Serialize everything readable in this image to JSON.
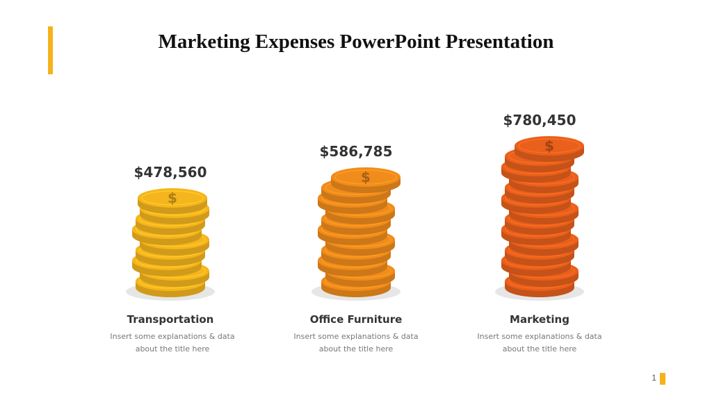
{
  "slide": {
    "title": "Marketing Expenses PowerPoint Presentation",
    "page_number": "1"
  },
  "chart_data": {
    "type": "bar",
    "title": "Marketing Expenses PowerPoint Presentation",
    "categories": [
      "Transportation",
      "Office Furniture",
      "Marketing"
    ],
    "values": [
      478560,
      586785,
      780450
    ],
    "value_labels": [
      "$478,560",
      "$586,785",
      "$780,450"
    ],
    "mark_style": "coin-stacks",
    "colors": [
      "#f5b51e",
      "#f08c1c",
      "#e8601c"
    ]
  },
  "items": [
    {
      "label": "Transportation",
      "value_label": "$478,560",
      "desc_line1": "Insert some explanations & data",
      "desc_line2": "about the title here"
    },
    {
      "label": "Office Furniture",
      "value_label": "$586,785",
      "desc_line1": "Insert some explanations & data",
      "desc_line2": "about the title here"
    },
    {
      "label": "Marketing",
      "value_label": "$780,450",
      "desc_line1": "Insert some explanations & data",
      "desc_line2": "about the title here"
    }
  ],
  "theme": {
    "accent": "#f5b21c",
    "coin_symbol": "$"
  }
}
